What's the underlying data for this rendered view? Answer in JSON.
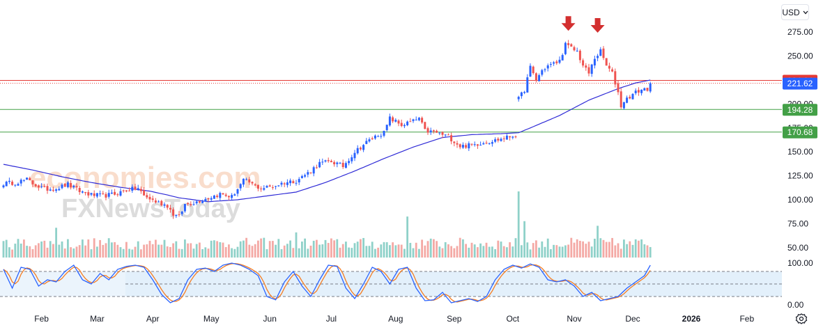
{
  "currency_button": {
    "label": "USD",
    "icon": "chevron-down-icon"
  },
  "settings_icon": "gear-icon",
  "watermark": {
    "line1": "economies.com",
    "line2": "FXNewsToday"
  },
  "colors": {
    "up": "#2962ff",
    "down": "#ef5350",
    "ma": "#2e2ad6",
    "resistance": "#e53935",
    "support": "#43a047",
    "stoch_k": "#2962ff",
    "stoch_d": "#f57c20",
    "vol_up": "#8fd1c9",
    "vol_down": "#f4a9a5",
    "arrow": "#d32f2f",
    "band": "#e3f0fb"
  },
  "chart_data": [
    {
      "type": "candlestick",
      "name": "price",
      "y_ticks": [
        "275.00",
        "250.00",
        "225.00",
        "200.00",
        "175.00",
        "150.00",
        "125.00",
        "100.00",
        "75.00",
        "50.00"
      ],
      "ylim": [
        37.5,
        287.5
      ],
      "x_ticks": [
        "Feb",
        "Mar",
        "Apr",
        "May",
        "Jun",
        "Jul",
        "Aug",
        "Sep",
        "Oct",
        "Nov",
        "Dec",
        "2026",
        "Feb"
      ],
      "x_tick_index": [
        13,
        32,
        51,
        71,
        91,
        112,
        134,
        154,
        174,
        195,
        215,
        235,
        254
      ],
      "bars_total": 265,
      "horizontal_lines": [
        {
          "label": "224.64",
          "value": 224.64,
          "color": "#e53935",
          "style": "solid"
        },
        {
          "label": "221.62",
          "value": 221.62,
          "color": "#2962ff",
          "style": "dotted-red",
          "note": "last price"
        },
        {
          "label": "194.28",
          "value": 194.28,
          "color": "#43a047",
          "style": "solid"
        },
        {
          "label": "170.68",
          "value": 170.68,
          "color": "#43a047",
          "style": "solid"
        }
      ],
      "annotations": [
        {
          "type": "down-arrow",
          "bar": 193,
          "above_value": 283
        },
        {
          "type": "down-arrow",
          "bar": 203,
          "above_value": 281
        }
      ],
      "close_path": [
        [
          0,
          117
        ],
        [
          4,
          118
        ],
        [
          8,
          121
        ],
        [
          10,
          117
        ],
        [
          14,
          111
        ],
        [
          18,
          112
        ],
        [
          22,
          116
        ],
        [
          26,
          109
        ],
        [
          30,
          105
        ],
        [
          34,
          104
        ],
        [
          38,
          106
        ],
        [
          42,
          110
        ],
        [
          46,
          112
        ],
        [
          48,
          104
        ],
        [
          52,
          98
        ],
        [
          56,
          94
        ],
        [
          58,
          85
        ],
        [
          60,
          82
        ],
        [
          62,
          95
        ],
        [
          66,
          98
        ],
        [
          70,
          102
        ],
        [
          74,
          106
        ],
        [
          78,
          103
        ],
        [
          82,
          120
        ],
        [
          84,
          118
        ],
        [
          86,
          114
        ],
        [
          88,
          112
        ],
        [
          92,
          114
        ],
        [
          96,
          118
        ],
        [
          100,
          120
        ],
        [
          104,
          128
        ],
        [
          108,
          138
        ],
        [
          112,
          140
        ],
        [
          116,
          135
        ],
        [
          120,
          150
        ],
        [
          124,
          160
        ],
        [
          128,
          168
        ],
        [
          130,
          170
        ],
        [
          132,
          185
        ],
        [
          136,
          178
        ],
        [
          140,
          182
        ],
        [
          142,
          185
        ],
        [
          144,
          172
        ],
        [
          148,
          170
        ],
        [
          152,
          166
        ],
        [
          156,
          156
        ],
        [
          160,
          157
        ],
        [
          164,
          160
        ],
        [
          168,
          162
        ],
        [
          172,
          165
        ],
        [
          175,
          168
        ],
        [
          176,
          205
        ],
        [
          178,
          215
        ],
        [
          180,
          238
        ],
        [
          182,
          225
        ],
        [
          184,
          235
        ],
        [
          186,
          240
        ],
        [
          188,
          242
        ],
        [
          190,
          245
        ],
        [
          192,
          262
        ],
        [
          194,
          258
        ],
        [
          196,
          255
        ],
        [
          198,
          240
        ],
        [
          200,
          232
        ],
        [
          202,
          248
        ],
        [
          204,
          255
        ],
        [
          206,
          240
        ],
        [
          208,
          232
        ],
        [
          210,
          212
        ],
        [
          211,
          198
        ],
        [
          212,
          203
        ],
        [
          214,
          208
        ],
        [
          216,
          212
        ],
        [
          218,
          215
        ],
        [
          220,
          216
        ],
        [
          221,
          221.62
        ]
      ],
      "ma_path": [
        [
          0,
          137
        ],
        [
          10,
          131
        ],
        [
          20,
          124
        ],
        [
          30,
          118
        ],
        [
          40,
          113
        ],
        [
          50,
          109
        ],
        [
          56,
          105
        ],
        [
          60,
          102
        ],
        [
          70,
          98
        ],
        [
          80,
          100
        ],
        [
          90,
          104
        ],
        [
          100,
          108
        ],
        [
          110,
          118
        ],
        [
          120,
          130
        ],
        [
          130,
          143
        ],
        [
          140,
          155
        ],
        [
          150,
          165
        ],
        [
          160,
          168
        ],
        [
          170,
          169
        ],
        [
          176,
          170
        ],
        [
          180,
          175
        ],
        [
          190,
          188
        ],
        [
          200,
          204
        ],
        [
          205,
          210
        ],
        [
          210,
          216
        ],
        [
          216,
          222
        ],
        [
          221,
          225
        ]
      ]
    },
    {
      "type": "bar",
      "name": "volume",
      "bars_total": 265,
      "spikes": [
        [
          176,
          1.0
        ],
        [
          138,
          0.62
        ],
        [
          203,
          0.48
        ],
        [
          18,
          0.45
        ],
        [
          100,
          0.38
        ],
        [
          178,
          0.55
        ]
      ]
    },
    {
      "type": "line",
      "name": "stochastic",
      "y_ticks": [
        "100.00",
        "0.00"
      ],
      "ylim": [
        0,
        100
      ],
      "levels": [
        80,
        50,
        20
      ],
      "k_path": [
        [
          0,
          85
        ],
        [
          3,
          40
        ],
        [
          6,
          90
        ],
        [
          9,
          85
        ],
        [
          12,
          45
        ],
        [
          15,
          60
        ],
        [
          18,
          55
        ],
        [
          21,
          80
        ],
        [
          24,
          95
        ],
        [
          27,
          60
        ],
        [
          30,
          50
        ],
        [
          33,
          75
        ],
        [
          36,
          60
        ],
        [
          39,
          85
        ],
        [
          42,
          92
        ],
        [
          45,
          95
        ],
        [
          48,
          90
        ],
        [
          51,
          60
        ],
        [
          54,
          25
        ],
        [
          57,
          5
        ],
        [
          60,
          15
        ],
        [
          63,
          60
        ],
        [
          66,
          85
        ],
        [
          69,
          88
        ],
        [
          72,
          80
        ],
        [
          75,
          95
        ],
        [
          78,
          100
        ],
        [
          81,
          95
        ],
        [
          84,
          85
        ],
        [
          87,
          70
        ],
        [
          90,
          20
        ],
        [
          93,
          12
        ],
        [
          96,
          55
        ],
        [
          99,
          80
        ],
        [
          102,
          45
        ],
        [
          105,
          20
        ],
        [
          108,
          60
        ],
        [
          111,
          95
        ],
        [
          114,
          92
        ],
        [
          117,
          40
        ],
        [
          120,
          15
        ],
        [
          123,
          50
        ],
        [
          126,
          90
        ],
        [
          129,
          80
        ],
        [
          132,
          50
        ],
        [
          135,
          85
        ],
        [
          138,
          90
        ],
        [
          141,
          40
        ],
        [
          144,
          10
        ],
        [
          147,
          12
        ],
        [
          150,
          30
        ],
        [
          153,
          5
        ],
        [
          156,
          10
        ],
        [
          159,
          15
        ],
        [
          162,
          8
        ],
        [
          165,
          20
        ],
        [
          168,
          60
        ],
        [
          171,
          85
        ],
        [
          174,
          95
        ],
        [
          177,
          88
        ],
        [
          180,
          98
        ],
        [
          183,
          90
        ],
        [
          186,
          60
        ],
        [
          189,
          55
        ],
        [
          192,
          60
        ],
        [
          195,
          45
        ],
        [
          198,
          20
        ],
        [
          201,
          30
        ],
        [
          204,
          10
        ],
        [
          207,
          15
        ],
        [
          210,
          20
        ],
        [
          213,
          40
        ],
        [
          216,
          55
        ],
        [
          219,
          70
        ],
        [
          221,
          95
        ]
      ]
    }
  ]
}
